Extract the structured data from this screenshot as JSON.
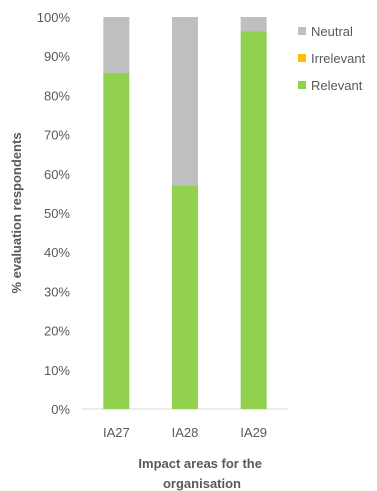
{
  "chart_data": {
    "type": "bar",
    "stacked": true,
    "categories": [
      "IA27",
      "IA28",
      "IA29"
    ],
    "series": [
      {
        "name": "Relevant",
        "values": [
          85.7,
          57.1,
          96.4
        ],
        "color": "#92d050"
      },
      {
        "name": "Irrelevant",
        "values": [
          0,
          0,
          0
        ],
        "color": "#ffc000"
      },
      {
        "name": "Neutral",
        "values": [
          14.3,
          42.9,
          3.6
        ],
        "color": "#bfbfbf"
      }
    ],
    "legend_order": [
      "Neutral",
      "Irrelevant",
      "Relevant"
    ],
    "xlabel_lines": [
      "Impact areas for the",
      "organisation"
    ],
    "ylabel": "% evaluation respondents",
    "ylim": [
      0,
      100
    ],
    "yticks": [
      "0%",
      "10%",
      "20%",
      "30%",
      "40%",
      "50%",
      "60%",
      "70%",
      "80%",
      "90%",
      "100%"
    ],
    "grid": false,
    "legend_position": "top-right"
  }
}
